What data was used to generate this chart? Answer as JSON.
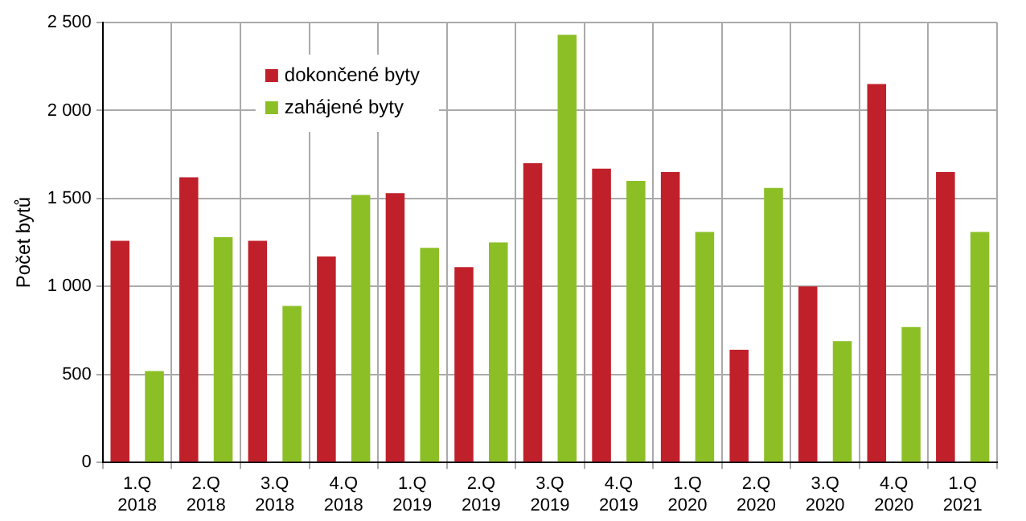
{
  "chart_data": {
    "type": "bar",
    "ylabel": "Počet bytů",
    "categories": [
      "1.Q 2018",
      "2.Q 2018",
      "3.Q 2018",
      "4.Q 2018",
      "1.Q 2019",
      "2.Q 2019",
      "3.Q 2019",
      "4.Q 2019",
      "1.Q 2020",
      "2.Q 2020",
      "3.Q 2020",
      "4.Q 2020",
      "1.Q 2021"
    ],
    "series": [
      {
        "name": "dokončené byty",
        "color": "#c0202a",
        "values": [
          1260,
          1620,
          1260,
          1170,
          1530,
          1110,
          1700,
          1670,
          1650,
          640,
          1000,
          2150,
          1650
        ]
      },
      {
        "name": "zahájené byty",
        "color": "#8cbf26",
        "values": [
          520,
          1280,
          890,
          1520,
          1220,
          1250,
          2430,
          1600,
          1310,
          1560,
          690,
          770,
          1310
        ]
      }
    ],
    "ylim": [
      0,
      2500
    ],
    "yticks": [
      0,
      500,
      {
        "value": 1000,
        "label": "1 000"
      },
      {
        "value": 1500,
        "label": "1 500"
      },
      {
        "value": 2000,
        "label": "2 000"
      },
      {
        "value": 2500,
        "label": "2 500"
      }
    ],
    "grid": true,
    "legend": "top left"
  }
}
